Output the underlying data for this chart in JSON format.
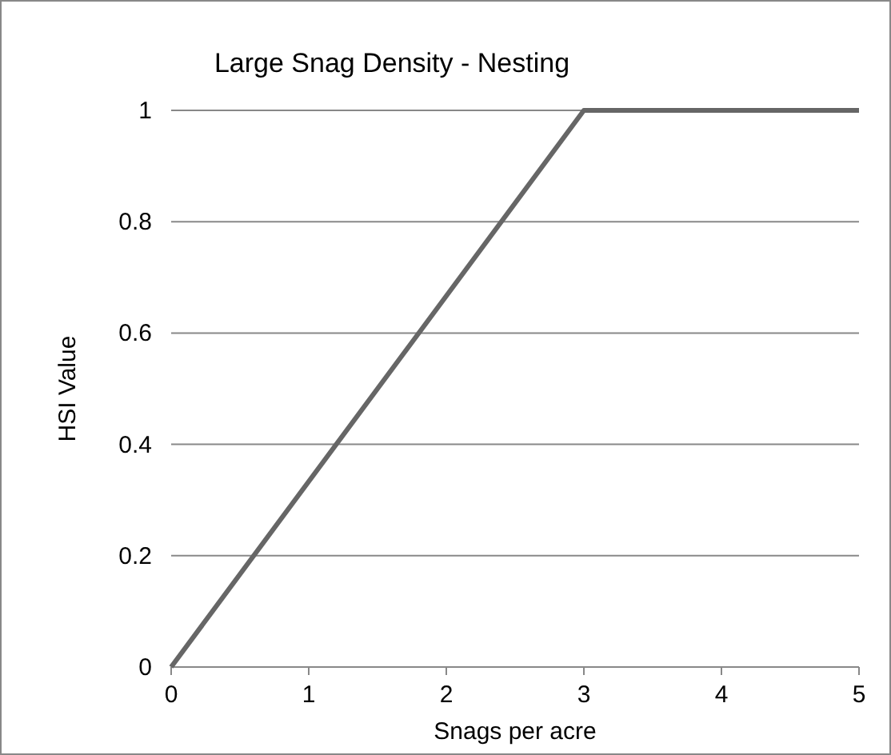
{
  "chart_data": {
    "type": "line",
    "title": "Large Snag Density - Nesting",
    "xlabel": "Snags per acre",
    "ylabel": "HSI Value",
    "x": [
      0,
      3,
      5
    ],
    "series": [
      {
        "color": "#666666",
        "values": [
          0,
          1,
          1
        ]
      }
    ],
    "xlim": [
      0,
      5
    ],
    "xticks": [
      0,
      1,
      2,
      3,
      4,
      5
    ],
    "ylim": [
      0,
      1
    ],
    "yticks": [
      0,
      0.2,
      0.4,
      0.6,
      0.8,
      1
    ],
    "grid": "y",
    "marker": "none",
    "line_style": "solid"
  }
}
